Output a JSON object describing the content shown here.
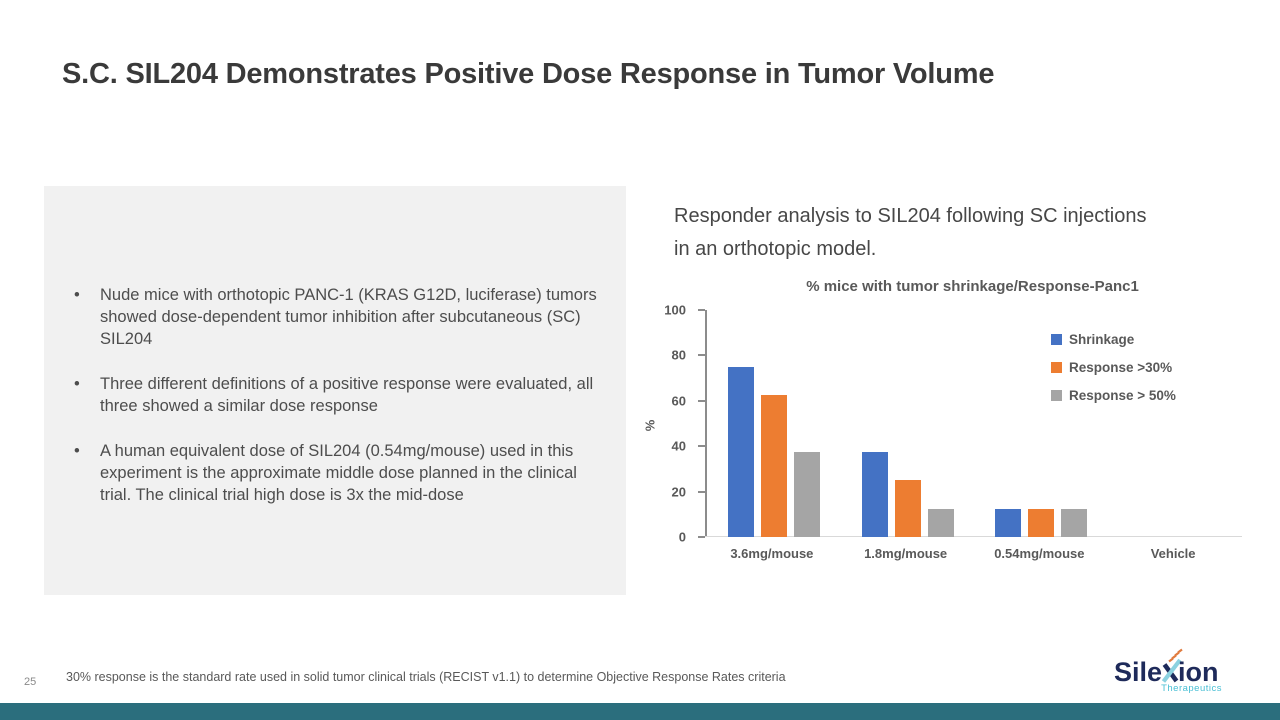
{
  "slide": {
    "title": "S.C. SIL204 Demonstrates Positive Dose Response in Tumor Volume",
    "page_number": "25",
    "footnote": "30% response is the standard rate used in solid tumor clinical trials (RECIST v1.1) to determine Objective Response Rates criteria"
  },
  "bullets": [
    "Nude mice with orthotopic PANC-1 (KRAS G12D, luciferase) tumors showed dose-dependent tumor inhibition after subcutaneous (SC) SIL204",
    "Three different definitions of a positive response were evaluated, all three showed a similar dose response",
    "A human equivalent dose of SIL204 (0.54mg/mouse) used in this experiment is the approximate middle dose planned in the clinical trial.  The clinical trial high dose is 3x the mid-dose"
  ],
  "chart_heading": "Responder analysis to SIL204 following SC injections in an orthotopic model.",
  "chart_data": {
    "type": "bar",
    "title": "% mice with tumor shrinkage/Response-Panc1",
    "ylabel": "%",
    "xlabel": "",
    "ylim": [
      0,
      100
    ],
    "ytick_step": 20,
    "grid": false,
    "legend_position": "right-top",
    "categories": [
      "3.6mg/mouse",
      "1.8mg/mouse",
      "0.54mg/mouse",
      "Vehicle"
    ],
    "series": [
      {
        "name": "Shrinkage",
        "color": "#4472C4",
        "values": [
          75,
          37.5,
          12.5,
          0
        ]
      },
      {
        "name": "Response >30%",
        "color": "#ED7D31",
        "values": [
          62.5,
          25,
          12.5,
          0
        ]
      },
      {
        "name": "Response > 50%",
        "color": "#A5A5A5",
        "values": [
          37.5,
          12.5,
          12.5,
          0
        ]
      }
    ]
  },
  "logo": {
    "part1": "Sile",
    "part2": "ion",
    "subtitle": "Therapeutics"
  },
  "colors": {
    "bar_blue": "#4472C4",
    "bar_orange": "#ED7D31",
    "bar_gray": "#A5A5A5",
    "footer_bar": "#2B6E7D",
    "logo_navy": "#1E2A5A",
    "logo_teal": "#49BFD4",
    "logo_light_blue": "#8BD2E0",
    "logo_orange": "#E07B3E"
  }
}
